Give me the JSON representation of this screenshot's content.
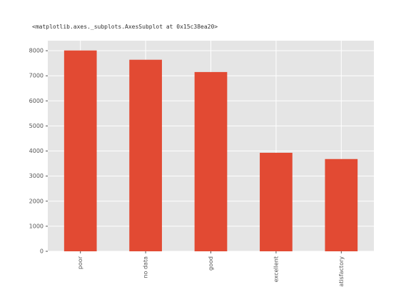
{
  "output_text": "<matplotlib.axes._subplots.AxesSubplot at 0x15c38ea20>",
  "chart_data": {
    "type": "bar",
    "categories": [
      "poor",
      "no data",
      "good",
      "excellent",
      "satisfactory"
    ],
    "values": [
      8010,
      7640,
      7150,
      3930,
      3680
    ],
    "color": "#E24A33",
    "ylim": [
      0,
      8400
    ],
    "yticks": [
      0,
      1000,
      2000,
      3000,
      4000,
      5000,
      6000,
      7000,
      8000
    ],
    "grid": true
  }
}
